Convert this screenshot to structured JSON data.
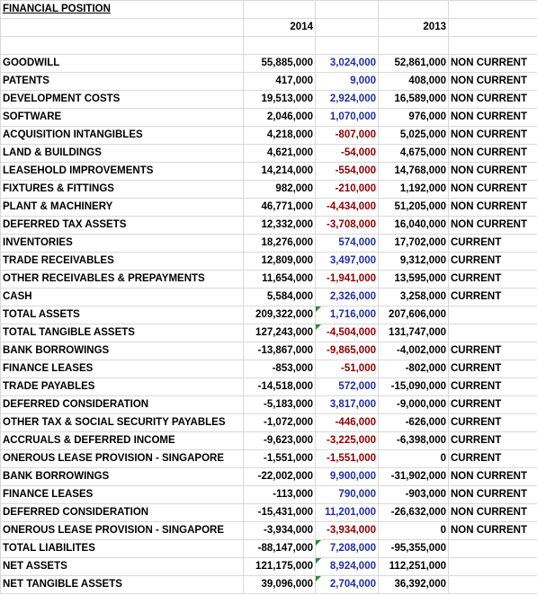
{
  "title": "FINANCIAL POSITION",
  "years": {
    "y2014": "2014",
    "y2013": "2013"
  },
  "rows": [
    {
      "label": "GOODWILL",
      "v2014": "55,885,000",
      "chg": "3,024,000",
      "sign": "pos",
      "v2013": "52,861,000",
      "cls": "NON CURRENT"
    },
    {
      "label": "PATENTS",
      "v2014": "417,000",
      "chg": "9,000",
      "sign": "pos",
      "v2013": "408,000",
      "cls": "NON CURRENT"
    },
    {
      "label": "DEVELOPMENT COSTS",
      "v2014": "19,513,000",
      "chg": "2,924,000",
      "sign": "pos",
      "v2013": "16,589,000",
      "cls": "NON CURRENT"
    },
    {
      "label": "SOFTWARE",
      "v2014": "2,046,000",
      "chg": "1,070,000",
      "sign": "pos",
      "v2013": "976,000",
      "cls": "NON CURRENT"
    },
    {
      "label": "ACQUISITION INTANGIBLES",
      "v2014": "4,218,000",
      "chg": "-807,000",
      "sign": "neg",
      "v2013": "5,025,000",
      "cls": "NON CURRENT"
    },
    {
      "label": "LAND & BUILDINGS",
      "v2014": "4,621,000",
      "chg": "-54,000",
      "sign": "neg",
      "v2013": "4,675,000",
      "cls": "NON CURRENT"
    },
    {
      "label": "LEASEHOLD IMPROVEMENTS",
      "v2014": "14,214,000",
      "chg": "-554,000",
      "sign": "neg",
      "v2013": "14,768,000",
      "cls": "NON CURRENT"
    },
    {
      "label": "FIXTURES & FITTINGS",
      "v2014": "982,000",
      "chg": "-210,000",
      "sign": "neg",
      "v2013": "1,192,000",
      "cls": "NON CURRENT"
    },
    {
      "label": "PLANT & MACHINERY",
      "v2014": "46,771,000",
      "chg": "-4,434,000",
      "sign": "neg",
      "v2013": "51,205,000",
      "cls": "NON CURRENT"
    },
    {
      "label": "DEFERRED TAX ASSETS",
      "v2014": "12,332,000",
      "chg": "-3,708,000",
      "sign": "neg",
      "v2013": "16,040,000",
      "cls": "NON CURRENT"
    },
    {
      "label": "INVENTORIES",
      "v2014": "18,276,000",
      "chg": "574,000",
      "sign": "pos",
      "v2013": "17,702,000",
      "cls": "CURRENT"
    },
    {
      "label": "TRADE RECEIVABLES",
      "v2014": "12,809,000",
      "chg": "3,497,000",
      "sign": "pos",
      "v2013": "9,312,000",
      "cls": "CURRENT"
    },
    {
      "label": "OTHER RECEIVABLES & PREPAYMENTS",
      "v2014": "11,654,000",
      "chg": "-1,941,000",
      "sign": "neg",
      "v2013": "13,595,000",
      "cls": "CURRENT"
    },
    {
      "label": "CASH",
      "v2014": "5,584,000",
      "chg": "2,326,000",
      "sign": "pos",
      "v2013": "3,258,000",
      "cls": "CURRENT"
    },
    {
      "label": "TOTAL ASSETS",
      "v2014": "209,322,000",
      "chg": "1,716,000",
      "sign": "pos",
      "v2013": "207,606,000",
      "cls": "",
      "flag": true
    },
    {
      "label": "TOTAL TANGIBLE ASSETS",
      "v2014": "127,243,000",
      "chg": "-4,504,000",
      "sign": "neg",
      "v2013": "131,747,000",
      "cls": "",
      "flag": true
    },
    {
      "label": "BANK BORROWINGS",
      "v2014": "-13,867,000",
      "chg": "-9,865,000",
      "sign": "neg",
      "v2013": "-4,002,000",
      "cls": "CURRENT"
    },
    {
      "label": "FINANCE LEASES",
      "v2014": "-853,000",
      "chg": "-51,000",
      "sign": "neg",
      "v2013": "-802,000",
      "cls": "CURRENT"
    },
    {
      "label": "TRADE PAYABLES",
      "v2014": "-14,518,000",
      "chg": "572,000",
      "sign": "pos",
      "v2013": "-15,090,000",
      "cls": "CURRENT"
    },
    {
      "label": "DEFERRED CONSIDERATION",
      "v2014": "-5,183,000",
      "chg": "3,817,000",
      "sign": "pos",
      "v2013": "-9,000,000",
      "cls": "CURRENT"
    },
    {
      "label": "OTHER TAX & SOCIAL SECURITY PAYABLES",
      "v2014": "-1,072,000",
      "chg": "-446,000",
      "sign": "neg",
      "v2013": "-626,000",
      "cls": "CURRENT"
    },
    {
      "label": "ACCRUALS & DEFERRED INCOME",
      "v2014": "-9,623,000",
      "chg": "-3,225,000",
      "sign": "neg",
      "v2013": "-6,398,000",
      "cls": "CURRENT"
    },
    {
      "label": "ONEROUS LEASE PROVISION - SINGAPORE",
      "v2014": "-1,551,000",
      "chg": "-1,551,000",
      "sign": "neg",
      "v2013": "0",
      "cls": "CURRENT"
    },
    {
      "label": "BANK BORROWINGS",
      "v2014": "-22,002,000",
      "chg": "9,900,000",
      "sign": "pos",
      "v2013": "-31,902,000",
      "cls": "NON CURRENT"
    },
    {
      "label": "FINANCE LEASES",
      "v2014": "-113,000",
      "chg": "790,000",
      "sign": "pos",
      "v2013": "-903,000",
      "cls": "NON CURRENT"
    },
    {
      "label": "DEFERRED CONSIDERATION",
      "v2014": "-15,431,000",
      "chg": "11,201,000",
      "sign": "pos",
      "v2013": "-26,632,000",
      "cls": "NON CURRENT"
    },
    {
      "label": "ONEROUS LEASE PROVISION - SINGAPORE",
      "v2014": "-3,934,000",
      "chg": "-3,934,000",
      "sign": "neg",
      "v2013": "0",
      "cls": "NON CURRENT"
    },
    {
      "label": "TOTAL LIABILITES",
      "v2014": "-88,147,000",
      "chg": "7,208,000",
      "sign": "pos",
      "v2013": "-95,355,000",
      "cls": "",
      "flag": true,
      "strong": true
    },
    {
      "label": "NET ASSETS",
      "v2014": "121,175,000",
      "chg": "8,924,000",
      "sign": "pos",
      "v2013": "112,251,000",
      "cls": "",
      "flag": true,
      "strong": true
    },
    {
      "label": "NET TANGIBLE ASSETS",
      "v2014": "39,096,000",
      "chg": "2,704,000",
      "sign": "pos",
      "v2013": "36,392,000",
      "cls": "",
      "flag": true,
      "strong": true
    }
  ]
}
